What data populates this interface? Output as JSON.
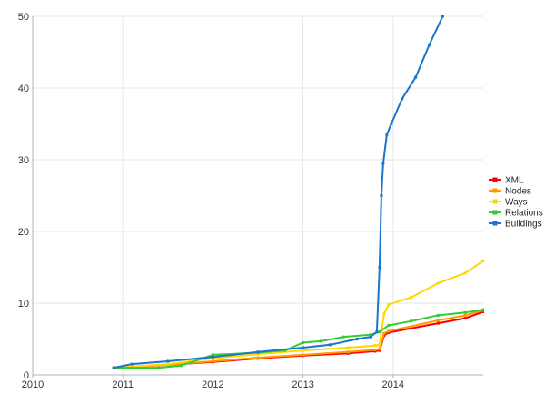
{
  "chart_data": {
    "type": "line",
    "title": "",
    "xlabel": "",
    "ylabel": "",
    "xlim": [
      2010,
      2015
    ],
    "ylim": [
      0,
      50
    ],
    "x_ticks": [
      2010,
      2011,
      2012,
      2013,
      2014
    ],
    "y_ticks": [
      0,
      10,
      20,
      30,
      40,
      50
    ],
    "grid": true,
    "legend_position": "right",
    "series": [
      {
        "name": "XML",
        "color": "#ff0000",
        "points": [
          [
            2010.9,
            1.0
          ],
          [
            2011.5,
            1.4
          ],
          [
            2012.0,
            1.8
          ],
          [
            2012.5,
            2.3
          ],
          [
            2013.0,
            2.7
          ],
          [
            2013.5,
            3.0
          ],
          [
            2013.8,
            3.3
          ],
          [
            2013.85,
            3.4
          ],
          [
            2013.9,
            5.5
          ],
          [
            2013.95,
            5.9
          ],
          [
            2014.5,
            7.2
          ],
          [
            2014.8,
            7.9
          ],
          [
            2015.0,
            8.8
          ]
        ]
      },
      {
        "name": "Nodes",
        "color": "#ff9900",
        "points": [
          [
            2010.9,
            1.0
          ],
          [
            2011.5,
            1.4
          ],
          [
            2012.0,
            1.9
          ],
          [
            2012.5,
            2.4
          ],
          [
            2013.0,
            2.8
          ],
          [
            2013.5,
            3.2
          ],
          [
            2013.8,
            3.5
          ],
          [
            2013.85,
            3.6
          ],
          [
            2013.9,
            5.8
          ],
          [
            2013.95,
            6.1
          ],
          [
            2014.5,
            7.6
          ],
          [
            2014.8,
            8.3
          ],
          [
            2015.0,
            9.0
          ]
        ]
      },
      {
        "name": "Ways",
        "color": "#ffd700",
        "points": [
          [
            2010.9,
            1.0
          ],
          [
            2011.5,
            1.5
          ],
          [
            2012.0,
            2.3
          ],
          [
            2012.5,
            2.9
          ],
          [
            2013.0,
            3.4
          ],
          [
            2013.5,
            3.8
          ],
          [
            2013.8,
            4.1
          ],
          [
            2013.85,
            4.2
          ],
          [
            2013.9,
            8.5
          ],
          [
            2013.95,
            9.8
          ],
          [
            2014.2,
            10.8
          ],
          [
            2014.5,
            12.8
          ],
          [
            2014.8,
            14.2
          ],
          [
            2015.0,
            15.9
          ]
        ]
      },
      {
        "name": "Relations",
        "color": "#33cc33",
        "points": [
          [
            2010.9,
            1.0
          ],
          [
            2011.4,
            1.0
          ],
          [
            2011.65,
            1.3
          ],
          [
            2012.0,
            2.8
          ],
          [
            2012.5,
            3.1
          ],
          [
            2012.8,
            3.4
          ],
          [
            2013.0,
            4.5
          ],
          [
            2013.2,
            4.7
          ],
          [
            2013.45,
            5.3
          ],
          [
            2013.75,
            5.6
          ],
          [
            2013.85,
            6.0
          ],
          [
            2013.95,
            6.9
          ],
          [
            2014.2,
            7.5
          ],
          [
            2014.5,
            8.3
          ],
          [
            2014.8,
            8.7
          ],
          [
            2015.0,
            9.1
          ]
        ]
      },
      {
        "name": "Buildings",
        "color": "#1a75cf",
        "points": [
          [
            2010.9,
            1.0
          ],
          [
            2011.1,
            1.5
          ],
          [
            2011.5,
            1.9
          ],
          [
            2012.0,
            2.5
          ],
          [
            2012.5,
            3.2
          ],
          [
            2013.0,
            3.8
          ],
          [
            2013.3,
            4.2
          ],
          [
            2013.6,
            5.0
          ],
          [
            2013.75,
            5.3
          ],
          [
            2013.82,
            6.0
          ],
          [
            2013.85,
            15.0
          ],
          [
            2013.87,
            25.0
          ],
          [
            2013.89,
            29.5
          ],
          [
            2013.93,
            33.5
          ],
          [
            2013.98,
            35.0
          ],
          [
            2014.1,
            38.5
          ],
          [
            2014.25,
            41.5
          ],
          [
            2014.4,
            46.0
          ],
          [
            2014.55,
            50.0
          ]
        ]
      }
    ]
  }
}
